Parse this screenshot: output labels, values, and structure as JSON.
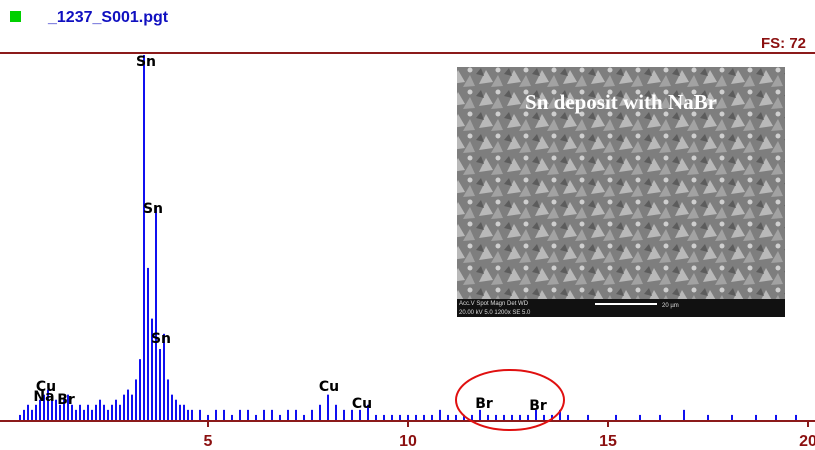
{
  "chart_data": {
    "type": "bar",
    "title": "_1237_S001.pgt",
    "full_scale_label": "FS: 72",
    "color": "#1010f0",
    "xlim": [
      0,
      20
    ],
    "xticks": [
      5,
      10,
      15,
      20
    ],
    "ylim": [
      0,
      72
    ],
    "x": [
      0.3,
      0.4,
      0.5,
      0.6,
      0.7,
      0.8,
      0.9,
      1.0,
      1.1,
      1.2,
      1.3,
      1.4,
      1.5,
      1.6,
      1.7,
      1.8,
      1.9,
      2.0,
      2.1,
      2.2,
      2.3,
      2.4,
      2.5,
      2.6,
      2.7,
      2.8,
      2.9,
      3.0,
      3.1,
      3.2,
      3.3,
      3.4,
      3.5,
      3.6,
      3.7,
      3.8,
      3.9,
      4.0,
      4.1,
      4.2,
      4.3,
      4.4,
      4.5,
      4.6,
      4.8,
      5.0,
      5.2,
      5.4,
      5.6,
      5.8,
      6.0,
      6.2,
      6.4,
      6.6,
      6.8,
      7.0,
      7.2,
      7.4,
      7.6,
      7.8,
      8.0,
      8.2,
      8.4,
      8.6,
      8.8,
      9.0,
      9.2,
      9.4,
      9.6,
      9.8,
      10.0,
      10.2,
      10.4,
      10.6,
      10.8,
      11.0,
      11.2,
      11.4,
      11.6,
      11.8,
      12.0,
      12.2,
      12.4,
      12.6,
      12.8,
      13.0,
      13.2,
      13.4,
      13.6,
      13.8,
      14.0,
      14.5,
      15.2,
      15.8,
      16.3,
      16.9,
      17.5,
      18.1,
      18.7,
      19.2,
      19.7
    ],
    "values": [
      1,
      2,
      3,
      2,
      3,
      4,
      5,
      6,
      5,
      4,
      3,
      4,
      5,
      3,
      2,
      3,
      2,
      3,
      2,
      3,
      4,
      3,
      2,
      3,
      4,
      3,
      5,
      6,
      5,
      8,
      12,
      72,
      30,
      20,
      42,
      14,
      17,
      8,
      5,
      4,
      3,
      3,
      2,
      2,
      2,
      1,
      2,
      2,
      1,
      2,
      2,
      1,
      2,
      2,
      1,
      2,
      2,
      1,
      2,
      3,
      5,
      3,
      2,
      2,
      2,
      3,
      1,
      1,
      1,
      1,
      1,
      1,
      1,
      1,
      2,
      1,
      1,
      1,
      1,
      2,
      1,
      1,
      1,
      1,
      1,
      1,
      2,
      1,
      1,
      2,
      1,
      1,
      1,
      1,
      1,
      2,
      1,
      1,
      1,
      1,
      1
    ],
    "peak_labels": [
      "Sn",
      "Sn",
      "Sn",
      "Cu",
      "Na",
      "Br",
      "Cu",
      "Cu",
      "Br",
      "Br"
    ],
    "inset": {
      "caption": "Sn deposit with NaBr",
      "info_header": "Acc.V  Spot Magn  Det  WD",
      "info_values": "20.00 kV 5.0  1200x  SE  5.0",
      "scale_bar": "20 µm"
    }
  }
}
